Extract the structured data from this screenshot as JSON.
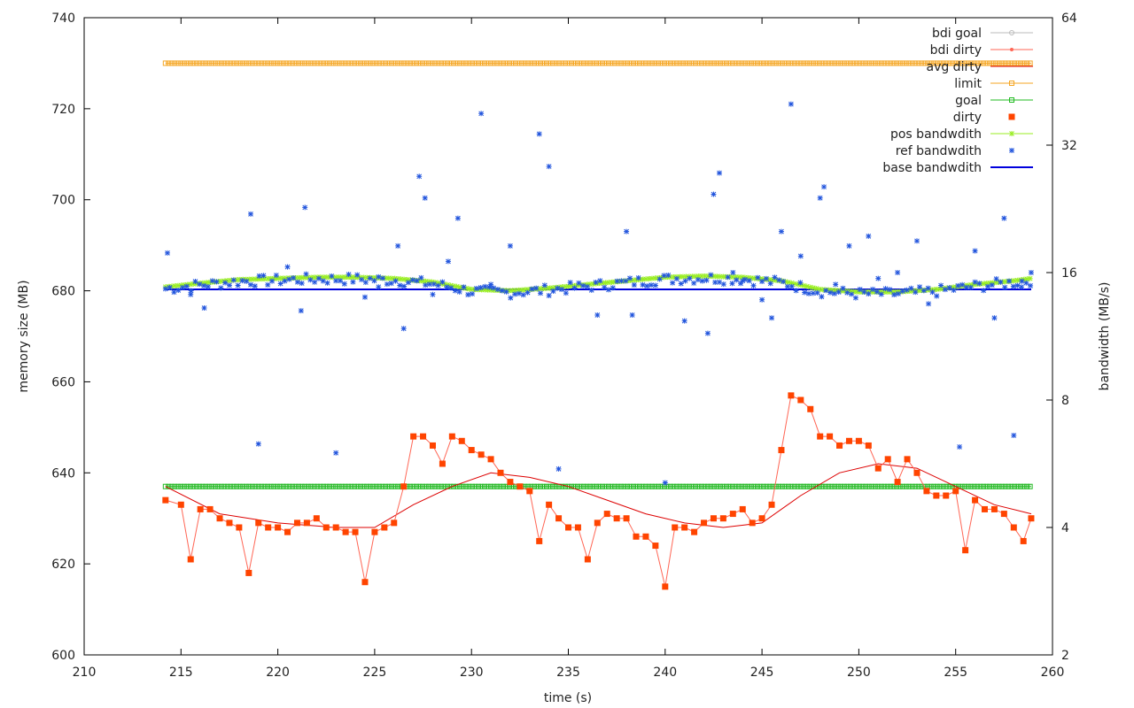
{
  "chart_data": {
    "type": "line",
    "xlabel": "time (s)",
    "ylabel": "memory size (MB)",
    "y2label": "bandwidth (MB/s)",
    "xlim": [
      210,
      260
    ],
    "ylim": [
      600,
      740
    ],
    "y2lim": [
      2,
      64
    ],
    "y2_scale": "log2",
    "x_ticks": [
      "210",
      "215",
      "220",
      "225",
      "230",
      "235",
      "240",
      "245",
      "250",
      "255",
      "260"
    ],
    "y_ticks": [
      "600",
      "620",
      "640",
      "660",
      "680",
      "700",
      "720",
      "740"
    ],
    "y2_ticks": [
      "2",
      "4",
      "8",
      "16",
      "32",
      "64"
    ],
    "grid": false,
    "legend_position": "top-right",
    "legend": [
      {
        "key": "bdi_goal",
        "label": "bdi goal",
        "color": "#bbbbbb",
        "marker": "circle"
      },
      {
        "key": "bdi_dirty",
        "label": "bdi dirty",
        "color": "#ff6655",
        "marker": "dot"
      },
      {
        "key": "avg_dirty",
        "label": "avg dirty",
        "color": "#dd0000",
        "marker": "none"
      },
      {
        "key": "limit",
        "label": "limit",
        "color": "#f5a623",
        "marker": "open-square"
      },
      {
        "key": "goal",
        "label": "goal",
        "color": "#22bb22",
        "marker": "open-square"
      },
      {
        "key": "dirty",
        "label": "dirty",
        "color": "#ff4400",
        "marker": "filled-square"
      },
      {
        "key": "pos_bandwidth",
        "label": "pos bandwdith",
        "color": "#99ee22",
        "marker": "star"
      },
      {
        "key": "ref_bandwidth",
        "label": "ref bandwdith",
        "color": "#2255dd",
        "marker": "star"
      },
      {
        "key": "base_bandwidth",
        "label": "base bandwdith",
        "color": "#0000dd",
        "marker": "none"
      }
    ],
    "series_x_range": [
      214.2,
      258.9
    ],
    "limit_level": 730,
    "goal_level": 637,
    "base_bandwidth_level": 14.6,
    "dirty": {
      "x": [
        214.2,
        215,
        215.5,
        216,
        216.5,
        217,
        217.5,
        218,
        218.5,
        219,
        219.5,
        220,
        220.5,
        221,
        221.5,
        222,
        222.5,
        223,
        223.5,
        224,
        224.5,
        225,
        225.5,
        226,
        226.5,
        227,
        227.5,
        228,
        228.5,
        229,
        229.5,
        230,
        230.5,
        231,
        231.5,
        232,
        232.5,
        233,
        233.5,
        234,
        234.5,
        235,
        235.5,
        236,
        236.5,
        237,
        237.5,
        238,
        238.5,
        239,
        239.5,
        240,
        240.5,
        241,
        241.5,
        242,
        242.5,
        243,
        243.5,
        244,
        244.5,
        245,
        245.5,
        246,
        246.5,
        247,
        247.5,
        248,
        248.5,
        249,
        249.5,
        250,
        250.5,
        251,
        251.5,
        252,
        252.5,
        253,
        253.5,
        254,
        254.5,
        255,
        255.5,
        256,
        256.5,
        257,
        257.5,
        258,
        258.5,
        258.9
      ],
      "y": [
        634,
        633,
        621,
        632,
        632,
        630,
        629,
        628,
        618,
        629,
        628,
        628,
        627,
        629,
        629,
        630,
        628,
        628,
        627,
        627,
        616,
        627,
        628,
        629,
        637,
        648,
        648,
        646,
        642,
        648,
        647,
        645,
        644,
        643,
        640,
        638,
        637,
        636,
        625,
        633,
        630,
        628,
        628,
        621,
        629,
        631,
        630,
        630,
        626,
        626,
        624,
        615,
        628,
        628,
        627,
        629,
        630,
        630,
        631,
        632,
        629,
        630,
        633,
        645,
        657,
        656,
        654,
        648,
        648,
        646,
        647,
        647,
        646,
        641,
        643,
        638,
        643,
        640,
        636,
        635,
        635,
        636,
        623,
        634,
        632,
        632,
        631,
        628,
        625,
        630
      ]
    },
    "avg_dirty": {
      "x": [
        214.2,
        217,
        220,
        223,
        225,
        227,
        229,
        231,
        233,
        235,
        237,
        239,
        241,
        243,
        245,
        247,
        249,
        251,
        253,
        255,
        257,
        258.9
      ],
      "y": [
        637,
        631,
        629,
        628,
        628,
        633,
        637,
        640,
        639,
        637,
        634,
        631,
        629,
        628,
        629,
        635,
        640,
        642,
        641,
        637,
        633,
        631
      ]
    },
    "pos_bandwidth": {
      "x": [
        214.2,
        216,
        218,
        220,
        222,
        224,
        226,
        228,
        230,
        232,
        234,
        236,
        238,
        240,
        242,
        244,
        246,
        248,
        250,
        252,
        254,
        256,
        258,
        258.9
      ],
      "y": [
        14.8,
        15.1,
        15.4,
        15.5,
        15.6,
        15.6,
        15.5,
        15.2,
        14.6,
        14.5,
        14.7,
        15.0,
        15.3,
        15.6,
        15.7,
        15.6,
        15.3,
        14.6,
        14.4,
        14.4,
        14.6,
        15.0,
        15.3,
        15.5
      ]
    },
    "ref_bandwidth": {
      "x": [
        214.3,
        215.5,
        216.2,
        218.6,
        219,
        220.5,
        221.2,
        221.4,
        223,
        224.5,
        225.2,
        226.2,
        226.5,
        227.3,
        227.6,
        228,
        228.8,
        229.3,
        230.5,
        231,
        232,
        233.5,
        234,
        234.5,
        236.5,
        238,
        238.3,
        240,
        241,
        242.2,
        242.5,
        242.8,
        243.5,
        244,
        245,
        245.5,
        246,
        246.5,
        247,
        248,
        248.2,
        248.8,
        249.5,
        250.5,
        251,
        252,
        253,
        253.6,
        255.2,
        256,
        257,
        257.5,
        258,
        258.4,
        258.9
      ],
      "y": [
        17.8,
        14.2,
        13.2,
        22.0,
        6.3,
        16.5,
        13.0,
        22.8,
        6.0,
        14.0,
        14.8,
        18.5,
        11.8,
        27.0,
        24.0,
        14.2,
        17.0,
        21.5,
        38.0,
        15.0,
        18.5,
        34.0,
        28.5,
        5.5,
        12.7,
        20.0,
        12.7,
        5.1,
        12.3,
        11.5,
        24.5,
        27.5,
        16.0,
        15.3,
        13.8,
        12.5,
        20.0,
        40.0,
        17.5,
        24.0,
        25.5,
        15.0,
        18.5,
        19.5,
        15.5,
        16.0,
        19.0,
        13.5,
        6.2,
        18.0,
        12.5,
        21.5,
        6.6,
        14.8,
        16.0
      ]
    }
  }
}
